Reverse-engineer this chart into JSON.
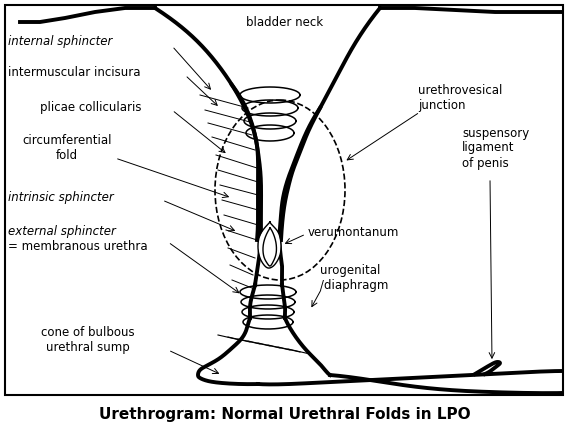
{
  "title": "Urethrogram: Normal Urethral Folds in LPO",
  "bg_color": "#ffffff",
  "labels": {
    "internal_sphincter": "internal sphincter",
    "intermuscular_incisura": "intermuscular incisura",
    "plicae_collicularis": "plicae collicularis",
    "circumferential_fold": "circumferential\nfold",
    "intrinsic_sphincter": "intrinsic sphincter",
    "external_sphincter_line1": "external sphincter",
    "external_sphincter_line2": "= membranous urethra",
    "cone_of_bulbous": "cone of bulbous\nurethral sump",
    "bladder_neck": "bladder neck",
    "urethrovesical_junction": "urethrovesical\njunction",
    "verumontanum": "verumontanum",
    "urogenital_diaphragm": "urogenital\n/diaphragm",
    "suspensory_ligament": "suspensory\nligament\nof penis"
  },
  "lw_thick": 2.8,
  "lw_med": 1.5,
  "lw_thin": 1.0,
  "lw_coil": 1.1
}
